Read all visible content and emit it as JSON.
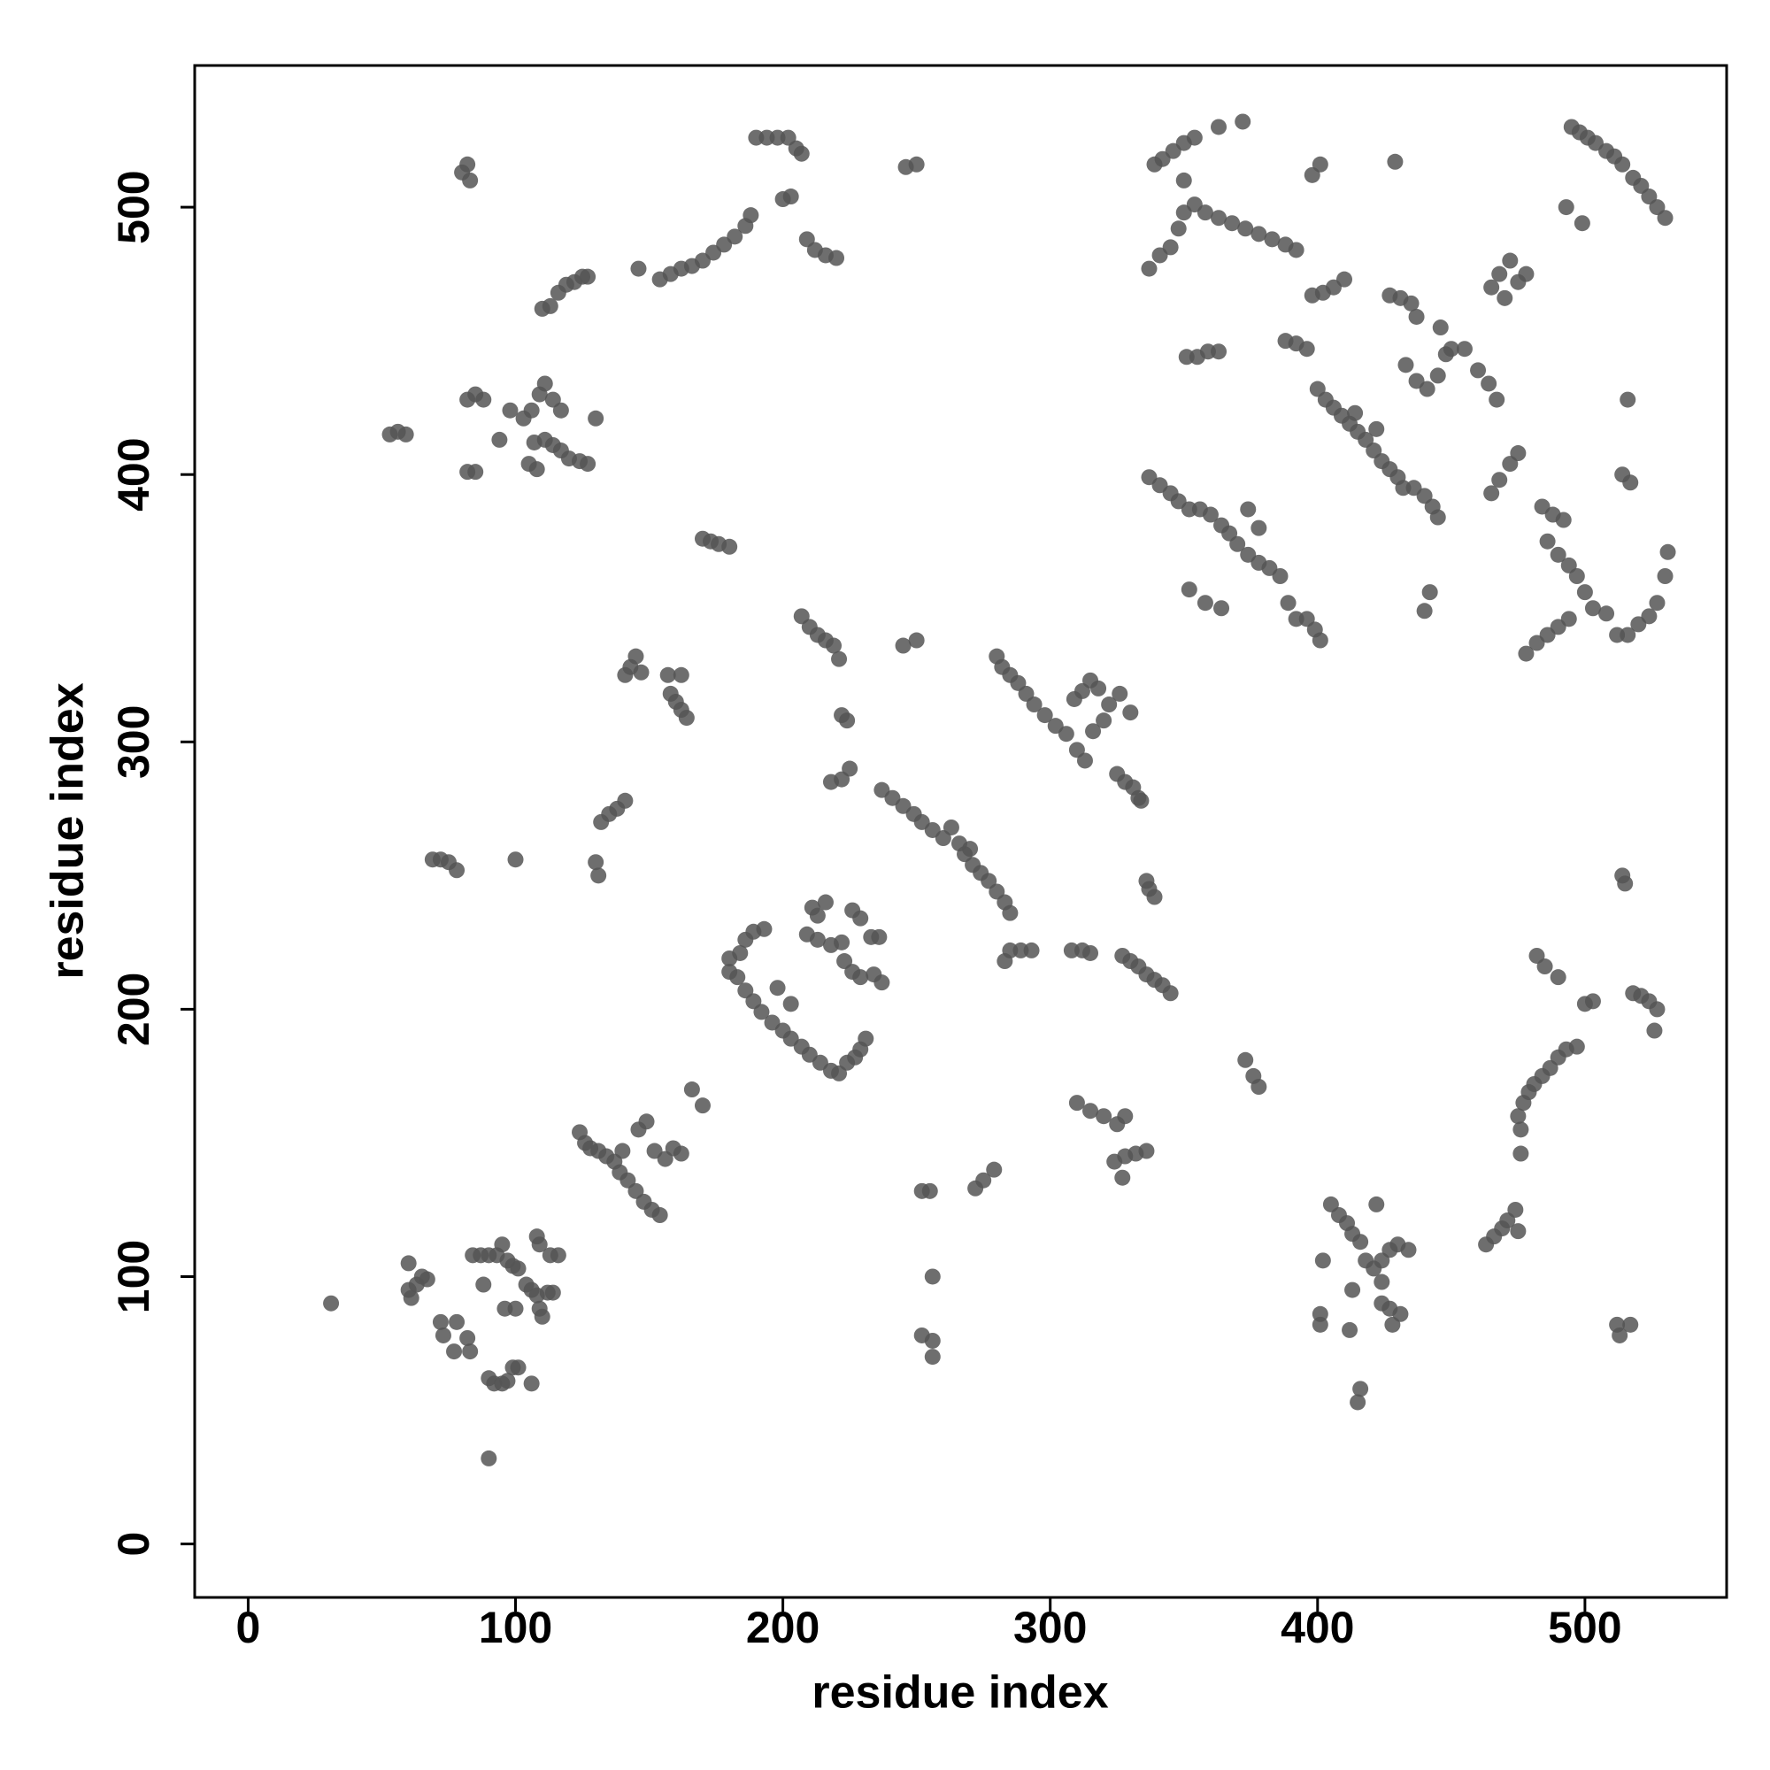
{
  "chart_data": {
    "type": "scatter",
    "xlabel": "residue index",
    "ylabel": "residue index",
    "xlim": [
      -20,
      553
    ],
    "ylim": [
      -20,
      553
    ],
    "xticks": [
      0,
      100,
      200,
      300,
      400,
      500
    ],
    "yticks": [
      0,
      100,
      200,
      300,
      400,
      500
    ],
    "color": "#555555",
    "x": [
      31,
      90,
      60,
      60,
      61,
      63,
      65,
      67,
      72,
      73,
      77,
      78,
      82,
      83,
      84,
      87,
      90,
      93,
      95,
      97,
      99,
      101,
      88,
      90,
      92,
      95,
      97,
      99,
      101,
      106,
      96,
      100,
      104,
      106,
      108,
      109,
      110,
      112,
      114,
      108,
      109,
      116,
      113,
      124,
      126,
      128,
      131,
      134,
      137,
      140,
      139,
      142,
      145,
      148,
      151,
      154,
      146,
      149,
      152,
      156,
      159,
      162,
      166,
      170,
      130,
      131,
      132,
      135,
      138,
      141,
      69,
      72,
      75,
      78,
      100,
      141,
      143,
      145,
      147,
      157,
      158,
      160,
      162,
      164,
      162,
      170,
      173,
      176,
      180,
      180,
      184,
      186,
      189,
      193,
      180,
      183,
      186,
      189,
      192,
      196,
      200,
      203,
      207,
      210,
      214,
      218,
      221,
      224,
      227,
      229,
      231,
      198,
      203,
      211,
      213,
      216,
      209,
      213,
      218,
      222,
      223,
      226,
      229,
      226,
      229,
      233,
      236,
      234,
      237,
      237,
      241,
      245,
      249,
      252,
      256,
      260,
      263,
      266,
      268,
      271,
      274,
      277,
      280,
      283,
      285,
      270,
      207,
      210,
      213,
      216,
      219,
      221,
      222,
      224,
      225,
      222,
      218,
      245,
      250,
      280,
      282,
      285,
      288,
      291,
      294,
      298,
      302,
      306,
      310,
      313,
      309,
      312,
      315,
      318,
      322,
      326,
      330,
      320,
      316,
      325,
      328,
      331,
      333,
      334,
      285,
      283,
      289,
      293,
      308,
      312,
      315,
      327,
      330,
      333,
      336,
      339,
      342,
      345,
      337,
      339,
      336,
      310,
      315,
      320,
      325,
      328,
      324,
      328,
      332,
      336,
      327,
      255,
      252,
      256,
      252,
      256,
      256,
      272,
      275,
      279,
      246,
      250,
      80,
      82,
      83,
      53,
      56,
      59,
      82,
      85,
      88,
      82,
      85,
      94,
      98,
      103,
      106,
      109,
      111,
      114,
      117,
      105,
      108,
      107,
      111,
      114,
      117,
      120,
      124,
      127,
      130,
      110,
      113,
      116,
      119,
      122,
      125,
      127,
      146,
      154,
      158,
      162,
      166,
      170,
      174,
      178,
      182,
      186,
      188,
      190,
      194,
      198,
      202,
      205,
      207,
      200,
      203,
      209,
      212,
      216,
      220,
      337,
      341,
      345,
      348,
      350,
      354,
      358,
      363,
      368,
      373,
      378,
      383,
      388,
      392,
      339,
      342,
      346,
      350,
      354,
      363,
      372,
      350,
      398,
      401,
      429,
      398,
      402,
      406,
      410,
      388,
      392,
      396,
      400,
      403,
      406,
      409,
      412,
      415,
      418,
      421,
      424,
      427,
      430,
      414,
      422,
      427,
      431,
      435,
      437,
      433,
      437,
      441,
      445,
      448,
      446,
      450,
      455,
      460,
      464,
      467,
      432,
      436,
      440,
      443,
      445,
      440,
      442,
      465,
      468,
      472,
      475,
      478,
      470,
      337,
      341,
      345,
      348,
      352,
      356,
      360,
      364,
      367,
      370,
      374,
      378,
      382,
      386,
      389,
      392,
      396,
      399,
      401,
      352,
      358,
      364,
      374,
      378,
      351,
      355,
      359,
      363,
      465,
      468,
      472,
      475,
      484,
      488,
      492,
      486,
      490,
      494,
      497,
      500,
      503,
      478,
      482,
      486,
      490,
      494,
      508,
      512,
      516,
      520,
      524,
      527,
      530,
      531,
      514,
      517,
      516,
      495,
      498,
      501,
      504,
      508,
      511,
      514,
      518,
      521,
      524,
      527,
      530,
      493,
      499,
      514,
      515,
      482,
      485,
      490,
      500,
      503,
      518,
      521,
      524,
      527,
      526,
      475,
      477,
      479,
      481,
      484,
      487,
      490,
      493,
      497,
      476,
      476,
      463,
      466,
      469,
      471,
      474,
      475,
      401,
      401,
      402,
      405,
      408,
      411,
      413,
      416,
      418,
      421,
      424,
      427,
      430,
      434,
      422,
      424,
      424,
      427,
      428,
      431,
      413,
      416,
      415,
      412,
      512,
      513,
      517,
      373,
      376,
      378
    ],
    "values": [
      90,
      32,
      105,
      95,
      92,
      97,
      100,
      99,
      83,
      78,
      72,
      83,
      77,
      72,
      108,
      108,
      108,
      108,
      112,
      106,
      104,
      103,
      97,
      62,
      60,
      60,
      61,
      66,
      66,
      60,
      88,
      88,
      97,
      95,
      93,
      88,
      85,
      94,
      94,
      115,
      112,
      108,
      108,
      154,
      150,
      148,
      147,
      145,
      143,
      147,
      139,
      136,
      132,
      128,
      125,
      123,
      155,
      158,
      147,
      144,
      148,
      146,
      170,
      164,
      255,
      250,
      270,
      273,
      275,
      278,
      256,
      256,
      255,
      252,
      256,
      325,
      328,
      332,
      326,
      325,
      318,
      315,
      312,
      309,
      325,
      376,
      375,
      374,
      373,
      219,
      221,
      226,
      229,
      230,
      214,
      212,
      207,
      203,
      199,
      195,
      192,
      189,
      186,
      183,
      180,
      177,
      176,
      180,
      182,
      185,
      189,
      208,
      202,
      238,
      235,
      240,
      228,
      226,
      224,
      225,
      218,
      214,
      212,
      237,
      234,
      227,
      227,
      213,
      210,
      282,
      279,
      276,
      273,
      270,
      267,
      264,
      268,
      262,
      258,
      254,
      251,
      248,
      244,
      240,
      236,
      260,
      347,
      343,
      340,
      338,
      336,
      331,
      310,
      308,
      290,
      286,
      285,
      336,
      338,
      332,
      328,
      325,
      322,
      318,
      314,
      310,
      306,
      303,
      297,
      293,
      316,
      319,
      323,
      320,
      314,
      318,
      311,
      308,
      304,
      288,
      285,
      283,
      279,
      278,
      222,
      218,
      222,
      222,
      222,
      222,
      221,
      220,
      218,
      216,
      213,
      211,
      209,
      206,
      245,
      242,
      248,
      165,
      162,
      160,
      157,
      160,
      143,
      145,
      146,
      147,
      137,
      132,
      132,
      100,
      78,
      76,
      70,
      133,
      136,
      140,
      515,
      516,
      513,
      516,
      510,
      415,
      416,
      415,
      428,
      430,
      428,
      401,
      401,
      413,
      424,
      421,
      424,
      430,
      434,
      428,
      424,
      404,
      402,
      412,
      413,
      411,
      409,
      406,
      405,
      404,
      421,
      462,
      463,
      468,
      471,
      472,
      474,
      474,
      477,
      473,
      475,
      477,
      478,
      480,
      483,
      486,
      489,
      493,
      497,
      526,
      526,
      526,
      526,
      522,
      520,
      503,
      504,
      488,
      484,
      482,
      481,
      477,
      482,
      485,
      492,
      498,
      501,
      498,
      496,
      494,
      492,
      490,
      488,
      486,
      484,
      516,
      518,
      521,
      524,
      526,
      530,
      532,
      510,
      512,
      516,
      517,
      467,
      468,
      470,
      473,
      450,
      449,
      447,
      432,
      428,
      425,
      422,
      419,
      416,
      413,
      409,
      405,
      402,
      399,
      423,
      417,
      467,
      466,
      464,
      459,
      441,
      435,
      432,
      437,
      445,
      455,
      447,
      447,
      439,
      434,
      428,
      395,
      395,
      392,
      388,
      384,
      349,
      356,
      470,
      475,
      480,
      472,
      475,
      466,
      399,
      396,
      393,
      390,
      387,
      387,
      385,
      381,
      378,
      374,
      370,
      367,
      365,
      362,
      352,
      346,
      346,
      342,
      338,
      357,
      352,
      350,
      387,
      380,
      444,
      444,
      446,
      446,
      393,
      398,
      404,
      408,
      388,
      385,
      383,
      375,
      370,
      366,
      362,
      356,
      350,
      333,
      337,
      340,
      343,
      346,
      348,
      340,
      340,
      344,
      347,
      352,
      362,
      371,
      400,
      397,
      428,
      530,
      528,
      526,
      524,
      521,
      519,
      516,
      511,
      508,
      504,
      500,
      496,
      500,
      494,
      250,
      247,
      220,
      216,
      212,
      202,
      203,
      206,
      205,
      203,
      200,
      192,
      160,
      165,
      169,
      172,
      175,
      178,
      182,
      185,
      186,
      146,
      155,
      112,
      115,
      118,
      121,
      125,
      117,
      82,
      86,
      106,
      127,
      123,
      120,
      116,
      113,
      106,
      103,
      106,
      110,
      112,
      110,
      127,
      98,
      90,
      88,
      82,
      86,
      95,
      58,
      53,
      80,
      82,
      78,
      82,
      181,
      175,
      171
    ]
  }
}
